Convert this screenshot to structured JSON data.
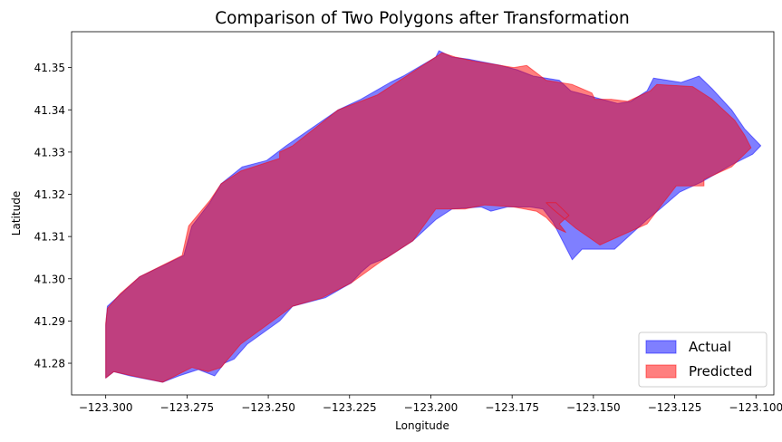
{
  "chart_data": {
    "type": "area",
    "title": "Comparison of Two Polygons after Transformation",
    "xlabel": "Longitude",
    "ylabel": "Latitude",
    "xlim": [
      -123.3105,
      -123.0945
    ],
    "ylim": [
      41.2725,
      41.3585
    ],
    "xticks": [
      -123.3,
      -123.275,
      -123.25,
      -123.225,
      -123.2,
      -123.175,
      -123.15,
      -123.125,
      -123.1
    ],
    "xtick_labels": [
      "−123.300",
      "−123.275",
      "−123.250",
      "−123.225",
      "−123.200",
      "−123.175",
      "−123.150",
      "−123.125",
      "−123.100"
    ],
    "yticks": [
      41.28,
      41.29,
      41.3,
      41.31,
      41.32,
      41.33,
      41.34,
      41.35
    ],
    "ytick_labels": [
      "41.28",
      "41.29",
      "41.30",
      "41.31",
      "41.32",
      "41.33",
      "41.34",
      "41.35"
    ],
    "legend_position": "lower-right",
    "series": [
      {
        "name": "Actual",
        "color": "#0000ff",
        "alpha": 0.5,
        "points": [
          [
            -123.3,
            41.2765
          ],
          [
            -123.3,
            41.289
          ],
          [
            -123.2995,
            41.2935
          ],
          [
            -123.2895,
            41.3005
          ],
          [
            -123.276,
            41.3055
          ],
          [
            -123.2735,
            41.3125
          ],
          [
            -123.268,
            41.318
          ],
          [
            -123.2645,
            41.3225
          ],
          [
            -123.258,
            41.3265
          ],
          [
            -123.2505,
            41.328
          ],
          [
            -123.2445,
            41.3315
          ],
          [
            -123.2285,
            41.34
          ],
          [
            -123.2215,
            41.3425
          ],
          [
            -123.2125,
            41.3465
          ],
          [
            -123.2085,
            41.348
          ],
          [
            -123.1985,
            41.3525
          ],
          [
            -123.1975,
            41.354
          ],
          [
            -123.1935,
            41.3525
          ],
          [
            -123.1885,
            41.352
          ],
          [
            -123.1785,
            41.3505
          ],
          [
            -123.1735,
            41.3495
          ],
          [
            -123.1685,
            41.348
          ],
          [
            -123.1605,
            41.347
          ],
          [
            -123.157,
            41.3445
          ],
          [
            -123.1425,
            41.3415
          ],
          [
            -123.1385,
            41.342
          ],
          [
            -123.1335,
            41.3445
          ],
          [
            -123.1315,
            41.3475
          ],
          [
            -123.123,
            41.3465
          ],
          [
            -123.1175,
            41.348
          ],
          [
            -123.1135,
            41.345
          ],
          [
            -123.1075,
            41.34
          ],
          [
            -123.1035,
            41.3355
          ],
          [
            -123.0985,
            41.3315
          ],
          [
            -123.101,
            41.3295
          ],
          [
            -123.1075,
            41.327
          ],
          [
            -123.1165,
            41.323
          ],
          [
            -123.1235,
            41.3205
          ],
          [
            -123.1295,
            41.3165
          ],
          [
            -123.1335,
            41.314
          ],
          [
            -123.1435,
            41.307
          ],
          [
            -123.1535,
            41.307
          ],
          [
            -123.1565,
            41.3045
          ],
          [
            -123.1625,
            41.3135
          ],
          [
            -123.1655,
            41.3165
          ],
          [
            -123.1695,
            41.317
          ],
          [
            -123.1765,
            41.317
          ],
          [
            -123.1815,
            41.316
          ],
          [
            -123.1845,
            41.317
          ],
          [
            -123.1935,
            41.3165
          ],
          [
            -123.1985,
            41.314
          ],
          [
            -123.2055,
            41.309
          ],
          [
            -123.2135,
            41.305
          ],
          [
            -123.2185,
            41.3035
          ],
          [
            -123.2215,
            41.3015
          ],
          [
            -123.2245,
            41.299
          ],
          [
            -123.2325,
            41.2955
          ],
          [
            -123.2425,
            41.2935
          ],
          [
            -123.2465,
            41.29
          ],
          [
            -123.2565,
            41.2845
          ],
          [
            -123.2605,
            41.281
          ],
          [
            -123.2635,
            41.28
          ],
          [
            -123.2665,
            41.277
          ],
          [
            -123.2715,
            41.2785
          ],
          [
            -123.2775,
            41.277
          ],
          [
            -123.2825,
            41.2755
          ],
          [
            -123.2925,
            41.277
          ],
          [
            -123.2975,
            41.278
          ]
        ]
      },
      {
        "name": "Predicted",
        "color": "#ff0000",
        "alpha": 0.5,
        "points": [
          [
            -123.3,
            41.2765
          ],
          [
            -123.3,
            41.2895
          ],
          [
            -123.2995,
            41.293
          ],
          [
            -123.2955,
            41.2965
          ],
          [
            -123.2895,
            41.3005
          ],
          [
            -123.2765,
            41.3055
          ],
          [
            -123.2745,
            41.3125
          ],
          [
            -123.268,
            41.3185
          ],
          [
            -123.2645,
            41.3225
          ],
          [
            -123.2585,
            41.3255
          ],
          [
            -123.2465,
            41.3285
          ],
          [
            -123.2465,
            41.33
          ],
          [
            -123.2425,
            41.3315
          ],
          [
            -123.2285,
            41.34
          ],
          [
            -123.2165,
            41.3435
          ],
          [
            -123.2055,
            41.349
          ],
          [
            -123.1965,
            41.3535
          ],
          [
            -123.1925,
            41.3525
          ],
          [
            -123.1865,
            41.3515
          ],
          [
            -123.1785,
            41.3505
          ],
          [
            -123.1745,
            41.35
          ],
          [
            -123.1705,
            41.3505
          ],
          [
            -123.1645,
            41.347
          ],
          [
            -123.1565,
            41.346
          ],
          [
            -123.1505,
            41.344
          ],
          [
            -123.1495,
            41.3425
          ],
          [
            -123.1445,
            41.3425
          ],
          [
            -123.1395,
            41.342
          ],
          [
            -123.1325,
            41.3445
          ],
          [
            -123.1305,
            41.346
          ],
          [
            -123.1195,
            41.3455
          ],
          [
            -123.1135,
            41.3425
          ],
          [
            -123.1065,
            41.3375
          ],
          [
            -123.1035,
            41.334
          ],
          [
            -123.1015,
            41.331
          ],
          [
            -123.1075,
            41.3265
          ],
          [
            -123.116,
            41.3235
          ],
          [
            -123.116,
            41.322
          ],
          [
            -123.1245,
            41.322
          ],
          [
            -123.1285,
            41.318
          ],
          [
            -123.1335,
            41.313
          ],
          [
            -123.148,
            41.308
          ],
          [
            -123.1555,
            41.312
          ],
          [
            -123.1625,
            41.3165
          ],
          [
            -123.1645,
            41.318
          ],
          [
            -123.1615,
            41.318
          ],
          [
            -123.1575,
            41.315
          ],
          [
            -123.1605,
            41.313
          ],
          [
            -123.1585,
            41.311
          ],
          [
            -123.1615,
            41.312
          ],
          [
            -123.1645,
            41.3145
          ],
          [
            -123.1675,
            41.316
          ],
          [
            -123.1745,
            41.317
          ],
          [
            -123.1835,
            41.3175
          ],
          [
            -123.1895,
            41.3165
          ],
          [
            -123.1985,
            41.3165
          ],
          [
            -123.2055,
            41.309
          ],
          [
            -123.2155,
            41.304
          ],
          [
            -123.2245,
            41.299
          ],
          [
            -123.2335,
            41.2955
          ],
          [
            -123.2425,
            41.2935
          ],
          [
            -123.2505,
            41.289
          ],
          [
            -123.2585,
            41.2845
          ],
          [
            -123.2645,
            41.279
          ],
          [
            -123.2685,
            41.278
          ],
          [
            -123.2735,
            41.279
          ],
          [
            -123.2825,
            41.2755
          ],
          [
            -123.2975,
            41.278
          ]
        ]
      }
    ]
  }
}
